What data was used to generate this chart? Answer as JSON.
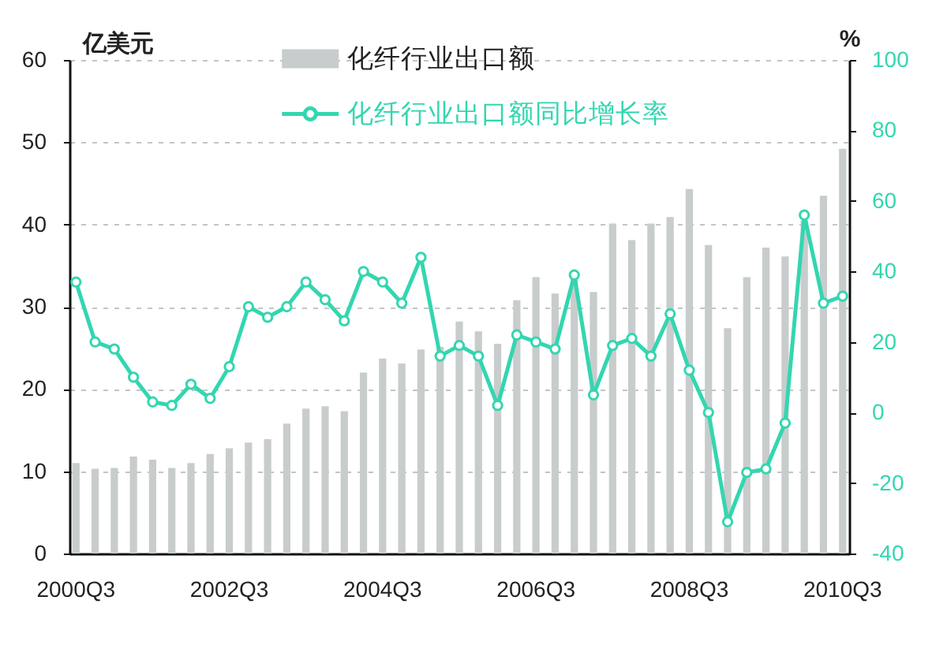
{
  "chart_data": {
    "type": "bar",
    "categories": [
      "2000Q3",
      null,
      null,
      null,
      null,
      null,
      null,
      null,
      "2002Q3",
      null,
      null,
      null,
      null,
      null,
      null,
      null,
      "2004Q3",
      null,
      null,
      null,
      null,
      null,
      null,
      null,
      "2006Q3",
      null,
      null,
      null,
      null,
      null,
      null,
      null,
      "2008Q3",
      null,
      null,
      null,
      null,
      null,
      null,
      null,
      "2010Q3"
    ],
    "series": [
      {
        "name": "化纤行业出口额",
        "color": "#c8cccc",
        "values": [
          11.0,
          10.3,
          10.4,
          11.8,
          11.4,
          10.4,
          11.0,
          12.1,
          12.8,
          13.5,
          13.9,
          15.8,
          17.6,
          17.9,
          17.3,
          22.0,
          23.7,
          23.1,
          24.8,
          25.1,
          28.2,
          27.0,
          25.5,
          30.8,
          33.6,
          31.6,
          33.9,
          31.8,
          40.1,
          38.1,
          40.1,
          40.9,
          44.3,
          37.5,
          27.4,
          33.6,
          37.2,
          36.1,
          40.5,
          43.5,
          49.2
        ]
      },
      {
        "name": "化纤行业出口额同比增长率",
        "type": "line",
        "axis": "y2",
        "color": "#33d6b0",
        "values": [
          37,
          20,
          18,
          10,
          3,
          2,
          8,
          4,
          13,
          30,
          27,
          30,
          37,
          32,
          26,
          40,
          37,
          31,
          44,
          16,
          19,
          16,
          2,
          22,
          20,
          18,
          39,
          5,
          19,
          21,
          16,
          28,
          12,
          0,
          -31,
          -17,
          -16,
          -3,
          56,
          31,
          33
        ]
      }
    ],
    "ylabel": "亿美元",
    "y2label": "%",
    "ylim": [
      0,
      60
    ],
    "yticks": [
      0,
      10,
      20,
      30,
      40,
      50,
      60
    ],
    "y2lim": [
      -40,
      100
    ],
    "y2ticks": [
      -40,
      -20,
      0,
      20,
      40,
      60,
      80,
      100
    ],
    "grid": "y",
    "legend": "top",
    "marker": "circle"
  }
}
